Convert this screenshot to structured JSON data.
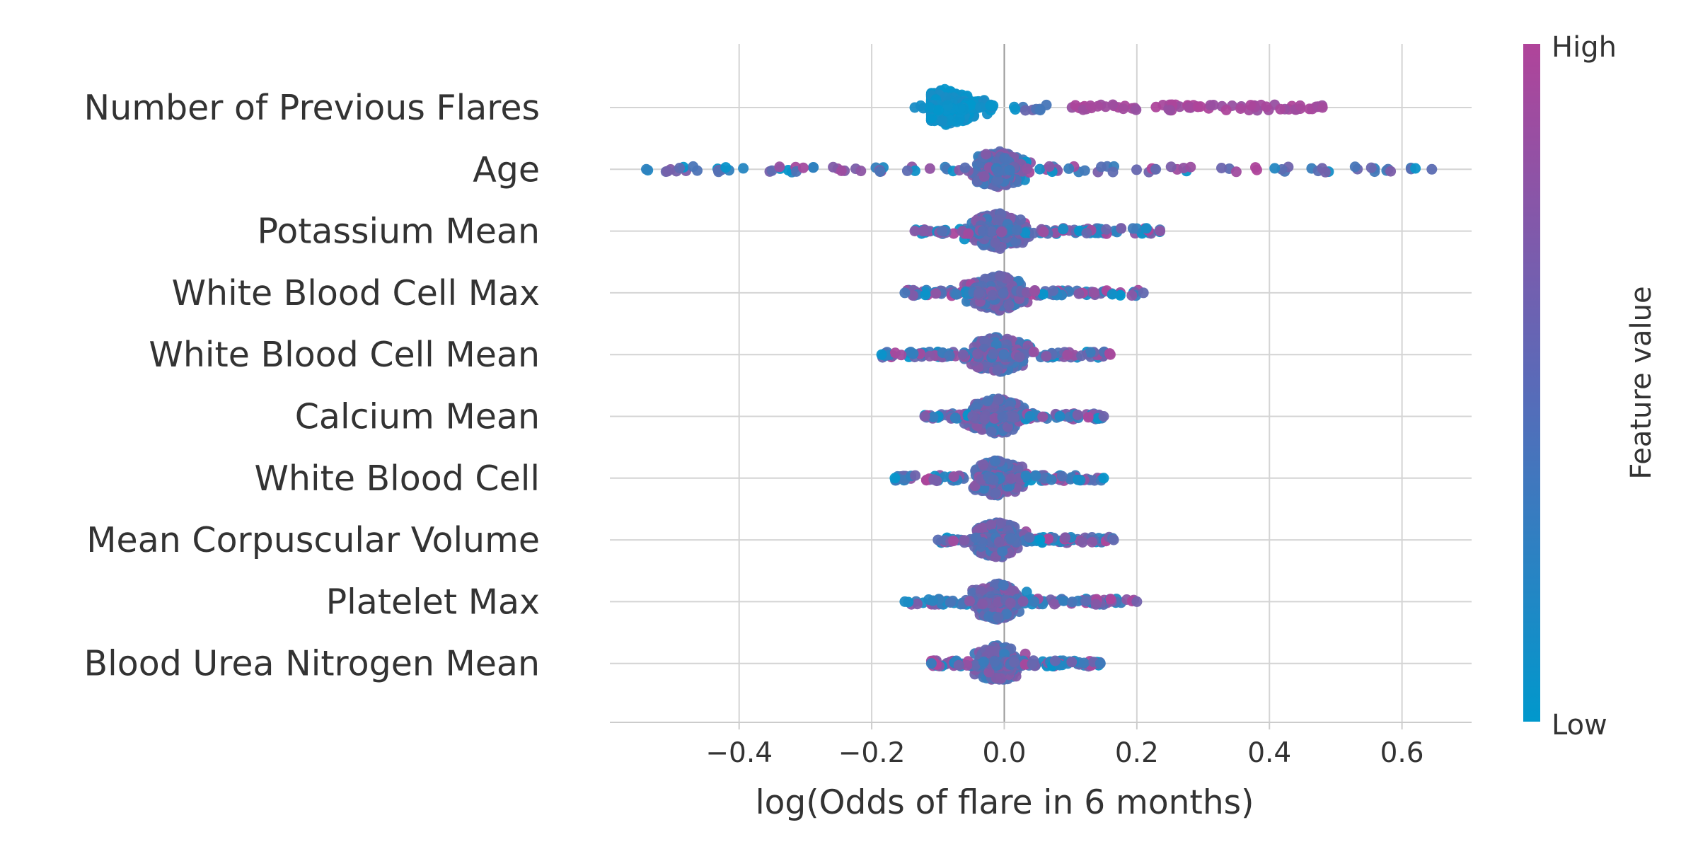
{
  "chart_data": {
    "type": "scatter",
    "subtype": "beeswarm",
    "title": "",
    "xlabel": "log(Odds of flare in 6 months)",
    "xlim": [
      -0.595,
      0.705
    ],
    "xticks": [
      -0.4,
      -0.2,
      0.0,
      0.2,
      0.4,
      0.6
    ],
    "xtick_labels": [
      "−0.4",
      "−0.2",
      "0.0",
      "0.2",
      "0.4",
      "0.6"
    ],
    "grid": true,
    "features": [
      {
        "name": "Number of Previous Flares",
        "min": -0.135,
        "max": 0.48,
        "core": [
          -0.1,
          0.06
        ],
        "peak": -0.09
      },
      {
        "name": "Age",
        "min": -0.54,
        "max": 0.645,
        "core": [
          -0.05,
          0.06
        ],
        "peak": -0.01
      },
      {
        "name": "Potassium Mean",
        "min": -0.135,
        "max": 0.235,
        "core": [
          -0.05,
          0.07
        ],
        "peak": -0.01
      },
      {
        "name": "White Blood Cell Max",
        "min": -0.15,
        "max": 0.21,
        "core": [
          -0.05,
          0.06
        ],
        "peak": -0.01
      },
      {
        "name": "White Blood Cell Mean",
        "min": -0.185,
        "max": 0.16,
        "core": [
          -0.05,
          0.06
        ],
        "peak": -0.01
      },
      {
        "name": "Calcium Mean",
        "min": -0.12,
        "max": 0.15,
        "core": [
          -0.05,
          0.06
        ],
        "peak": -0.01
      },
      {
        "name": "White Blood Cell",
        "min": -0.165,
        "max": 0.15,
        "core": [
          -0.04,
          0.05
        ],
        "peak": -0.01
      },
      {
        "name": "Mean Corpuscular Volume",
        "min": -0.1,
        "max": 0.165,
        "core": [
          -0.04,
          0.05
        ],
        "peak": -0.01
      },
      {
        "name": "Platelet Max",
        "min": -0.15,
        "max": 0.2,
        "core": [
          -0.04,
          0.05
        ],
        "peak": -0.01
      },
      {
        "name": "Blood Urea Nitrogen Mean",
        "min": -0.11,
        "max": 0.145,
        "core": [
          -0.04,
          0.05
        ],
        "peak": -0.01
      }
    ],
    "colorbar": {
      "label": "Feature value",
      "high_label": "High",
      "low_label": "Low",
      "high_color": "#b0449a",
      "low_color": "#0098cc"
    }
  }
}
